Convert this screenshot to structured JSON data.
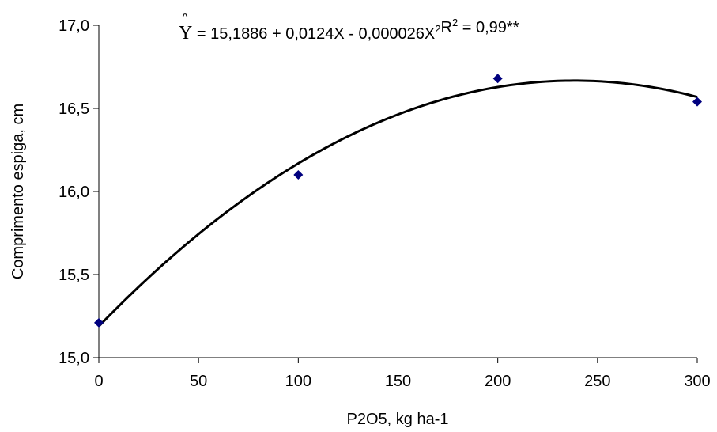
{
  "chart_data": {
    "type": "scatter",
    "xlabel": "P2O5, kg ha-1",
    "ylabel": "Comprimento espiga, cm",
    "xlim": [
      0,
      300
    ],
    "ylim": [
      15.0,
      17.0
    ],
    "xticks": [
      0,
      50,
      100,
      150,
      200,
      250,
      300
    ],
    "xtick_labels": [
      "0",
      "50",
      "100",
      "150",
      "200",
      "250",
      "300"
    ],
    "yticks": [
      15.0,
      15.5,
      16.0,
      16.5,
      17.0
    ],
    "ytick_labels": [
      "15,0",
      "15,5",
      "16,0",
      "16,5",
      "17,0"
    ],
    "grid": false,
    "legend": "none",
    "points": {
      "x": [
        0,
        100,
        200,
        300
      ],
      "y": [
        15.21,
        16.1,
        16.68,
        16.54
      ],
      "color": "#00007f",
      "marker": "diamond"
    },
    "fit": {
      "model": "quadratic",
      "coefficients": [
        15.1886,
        0.0124,
        -2.6e-05
      ],
      "color": "#000000"
    },
    "annotation": {
      "yhat": "Y",
      "hat": "^",
      "equation": " = 15,1886 + 0,0124X - 0,000026X",
      "superscript": "2",
      "r_label": "R",
      "r_superscript": "2",
      "r_value": " = 0,99**"
    }
  }
}
